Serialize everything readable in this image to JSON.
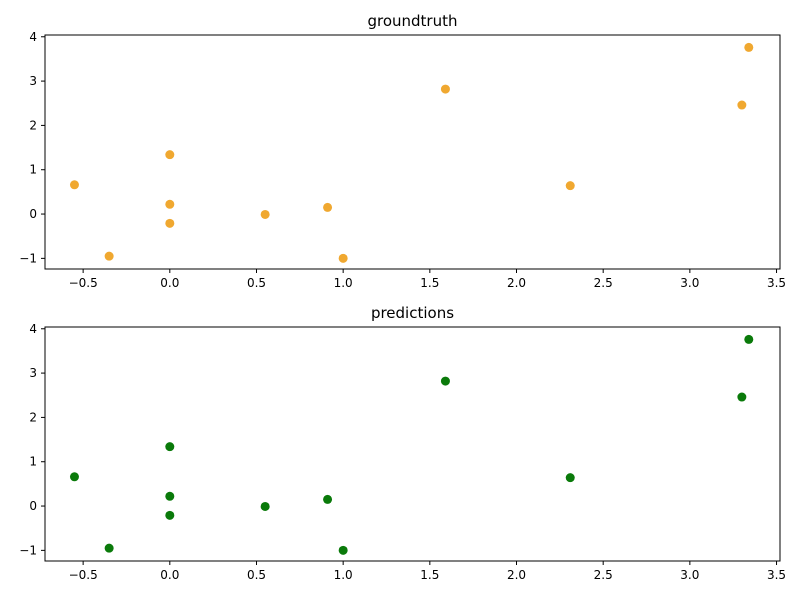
{
  "chart_data": [
    {
      "type": "scatter",
      "title": "groundtruth",
      "xlabel": "",
      "ylabel": "",
      "xlim": [
        -0.72,
        3.52
      ],
      "ylim": [
        -1.24,
        4.04
      ],
      "grid": false,
      "xticks": [
        -0.5,
        0.0,
        0.5,
        1.0,
        1.5,
        2.0,
        2.5,
        3.0,
        3.5
      ],
      "xtick_labels": [
        "−0.5",
        "0.0",
        "0.5",
        "1.0",
        "1.5",
        "2.0",
        "2.5",
        "3.0",
        "3.5"
      ],
      "yticks": [
        -1,
        0,
        1,
        2,
        3,
        4
      ],
      "ytick_labels": [
        "−1",
        "0",
        "1",
        "2",
        "3",
        "4"
      ],
      "color": "#f0a830",
      "series": [
        {
          "x": [
            -0.55,
            -0.35,
            0.0,
            0.0,
            0.0,
            0.55,
            0.91,
            1.0,
            1.59,
            2.31,
            3.3,
            3.34
          ],
          "y": [
            0.66,
            -0.95,
            1.34,
            0.22,
            -0.21,
            -0.01,
            0.15,
            -1.0,
            2.82,
            0.64,
            2.46,
            3.76
          ]
        }
      ]
    },
    {
      "type": "scatter",
      "title": "predictions",
      "xlabel": "",
      "ylabel": "",
      "xlim": [
        -0.72,
        3.52
      ],
      "ylim": [
        -1.24,
        4.04
      ],
      "grid": false,
      "xticks": [
        -0.5,
        0.0,
        0.5,
        1.0,
        1.5,
        2.0,
        2.5,
        3.0,
        3.5
      ],
      "xtick_labels": [
        "−0.5",
        "0.0",
        "0.5",
        "1.0",
        "1.5",
        "2.0",
        "2.5",
        "3.0",
        "3.5"
      ],
      "yticks": [
        -1,
        0,
        1,
        2,
        3,
        4
      ],
      "ytick_labels": [
        "−1",
        "0",
        "1",
        "2",
        "3",
        "4"
      ],
      "color": "#0a7a0a",
      "series": [
        {
          "x": [
            -0.55,
            -0.35,
            0.0,
            0.0,
            0.0,
            0.55,
            0.91,
            1.0,
            1.59,
            2.31,
            3.3,
            3.34
          ],
          "y": [
            0.66,
            -0.95,
            1.34,
            0.22,
            -0.21,
            -0.01,
            0.15,
            -1.0,
            2.82,
            0.64,
            2.46,
            3.76
          ]
        }
      ]
    }
  ]
}
